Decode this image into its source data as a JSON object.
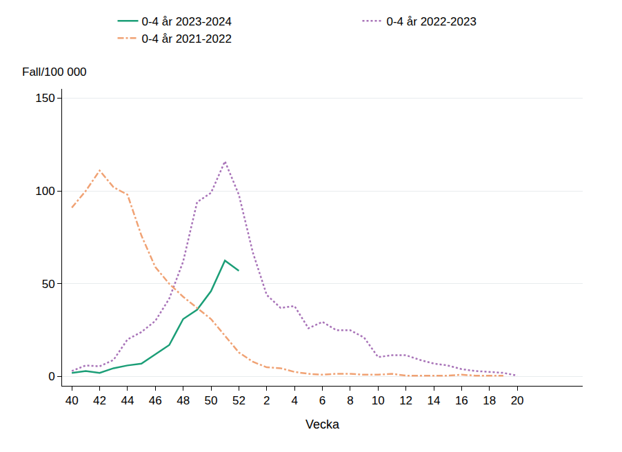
{
  "chart_data": {
    "type": "line",
    "x_label": "Vecka",
    "y_label": "Fall/100 000",
    "categories": [
      40,
      null,
      42,
      null,
      44,
      null,
      46,
      null,
      48,
      null,
      50,
      null,
      52,
      null,
      2,
      null,
      4,
      null,
      6,
      null,
      8,
      null,
      10,
      null,
      12,
      null,
      14,
      null,
      16,
      null,
      18,
      null,
      20
    ],
    "ylim": [
      -5,
      155
    ],
    "yticks": [
      0,
      50,
      100,
      150
    ],
    "grid": true,
    "legend": "top",
    "series": [
      {
        "name": "0-4 år 2023-2024",
        "color": "#1b9e77",
        "line_style": "solid",
        "values": [
          2,
          3,
          2,
          4.5,
          6,
          7,
          12,
          17,
          31,
          36,
          46,
          62.5,
          57,
          null,
          null,
          null,
          null,
          null,
          null,
          null,
          null,
          null,
          null,
          null,
          null,
          null,
          null,
          null,
          null,
          null,
          null,
          null,
          null
        ]
      },
      {
        "name": "0-4 år 2022-2023",
        "color": "#a873b8",
        "line_style": "dotted",
        "values": [
          3,
          6,
          5.5,
          9,
          20,
          24,
          30,
          42,
          62,
          94,
          99,
          116,
          98,
          67,
          44,
          37,
          38,
          26,
          29.5,
          25,
          25,
          21,
          10.5,
          11.5,
          11.5,
          9,
          7,
          6,
          4,
          3,
          2.5,
          2,
          0.5
        ]
      },
      {
        "name": "0-4 år 2021-2022",
        "color": "#f0a274",
        "line_style": "dash-dot",
        "values": [
          91,
          100,
          111,
          102,
          98,
          76,
          59,
          50,
          43,
          37,
          31,
          22,
          13,
          8,
          5,
          4.5,
          2.5,
          1.5,
          1,
          1.5,
          1.5,
          1,
          1,
          1.5,
          0.5,
          0.5,
          0.5,
          0.5,
          1,
          0.5,
          0.5,
          0.5,
          null
        ]
      }
    ]
  }
}
